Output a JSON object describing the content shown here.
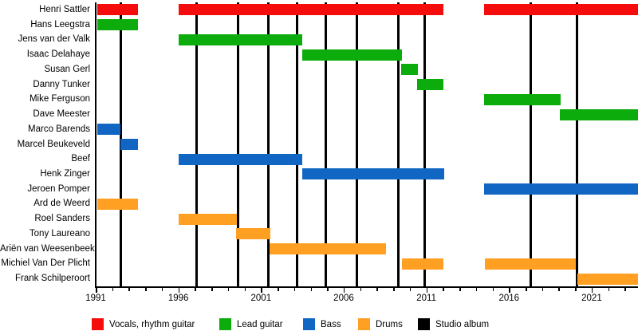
{
  "chart_data": {
    "type": "timeline",
    "description": "Band members timeline (gantt-style) with studio album release lines",
    "x_axis": {
      "min": 1991,
      "max": 2023.8,
      "labeled_ticks": [
        1991,
        1996,
        2001,
        2006,
        2011,
        2016,
        2021
      ],
      "minor_tick_interval": 1
    },
    "legend": [
      {
        "key": "vocals",
        "label": "Vocals, rhythm guitar",
        "color": "#f50d0d"
      },
      {
        "key": "lead_guitar",
        "label": "Lead guitar",
        "color": "#0cac0c"
      },
      {
        "key": "bass",
        "label": "Bass",
        "color": "#1166c4"
      },
      {
        "key": "drums",
        "label": "Drums",
        "color": "#ffa023"
      },
      {
        "key": "studio_album",
        "label": "Studio album",
        "color": "#000000"
      }
    ],
    "members": [
      {
        "name": "Henri Sattler",
        "role": "vocals",
        "segments": [
          [
            1991.1,
            1993.55
          ],
          [
            1996.0,
            2012.05
          ],
          [
            2014.5,
            2023.8
          ]
        ]
      },
      {
        "name": "Hans Leegstra",
        "role": "lead_guitar",
        "segments": [
          [
            1991.1,
            1993.55
          ]
        ]
      },
      {
        "name": "Jens van der Valk",
        "role": "lead_guitar",
        "segments": [
          [
            1996.0,
            2003.5
          ]
        ]
      },
      {
        "name": "Isaac Delahaye",
        "role": "lead_guitar",
        "segments": [
          [
            2003.5,
            2009.5
          ]
        ]
      },
      {
        "name": "Susan Gerl",
        "role": "lead_guitar",
        "segments": [
          [
            2009.45,
            2010.5
          ]
        ]
      },
      {
        "name": "Danny Tunker",
        "role": "lead_guitar",
        "segments": [
          [
            2010.45,
            2012.05
          ]
        ]
      },
      {
        "name": "Mike Ferguson",
        "role": "lead_guitar",
        "segments": [
          [
            2014.5,
            2019.1
          ]
        ]
      },
      {
        "name": "Dave Meester",
        "role": "lead_guitar",
        "segments": [
          [
            2019.05,
            2023.8
          ]
        ]
      },
      {
        "name": "Marco Barends",
        "role": "bass",
        "segments": [
          [
            1991.1,
            1992.5
          ]
        ]
      },
      {
        "name": "Marcel Beukeveld",
        "role": "bass",
        "segments": [
          [
            1992.5,
            1993.55
          ]
        ]
      },
      {
        "name": "Beef",
        "role": "bass",
        "segments": [
          [
            1996.0,
            2003.5
          ]
        ]
      },
      {
        "name": "Henk Zinger",
        "role": "bass",
        "segments": [
          [
            2003.5,
            2012.1
          ]
        ]
      },
      {
        "name": "Jeroen Pomper",
        "role": "bass",
        "segments": [
          [
            2014.5,
            2023.8
          ]
        ]
      },
      {
        "name": "Ard de Weerd",
        "role": "drums",
        "segments": [
          [
            1991.1,
            1993.55
          ]
        ]
      },
      {
        "name": "Roel Sanders",
        "role": "drums",
        "segments": [
          [
            1996.0,
            1999.55
          ]
        ]
      },
      {
        "name": "Tony Laureano",
        "role": "drums",
        "segments": [
          [
            1999.5,
            2001.55
          ]
        ]
      },
      {
        "name": "Ariën van Weesenbeek",
        "role": "drums",
        "segments": [
          [
            2001.5,
            2008.55
          ]
        ]
      },
      {
        "name": "Michiel Van Der Plicht",
        "role": "drums",
        "segments": [
          [
            2009.5,
            2012.05
          ],
          [
            2014.55,
            2020.05
          ]
        ]
      },
      {
        "name": "Frank Schilperoort",
        "role": "drums",
        "segments": [
          [
            2020.15,
            2023.8
          ]
        ]
      }
    ],
    "album_lines": [
      1992.5,
      1997.1,
      1999.6,
      2001.45,
      2003.2,
      2004.9,
      2006.8,
      2009.3,
      2010.9,
      2017.3,
      2020.1
    ]
  }
}
